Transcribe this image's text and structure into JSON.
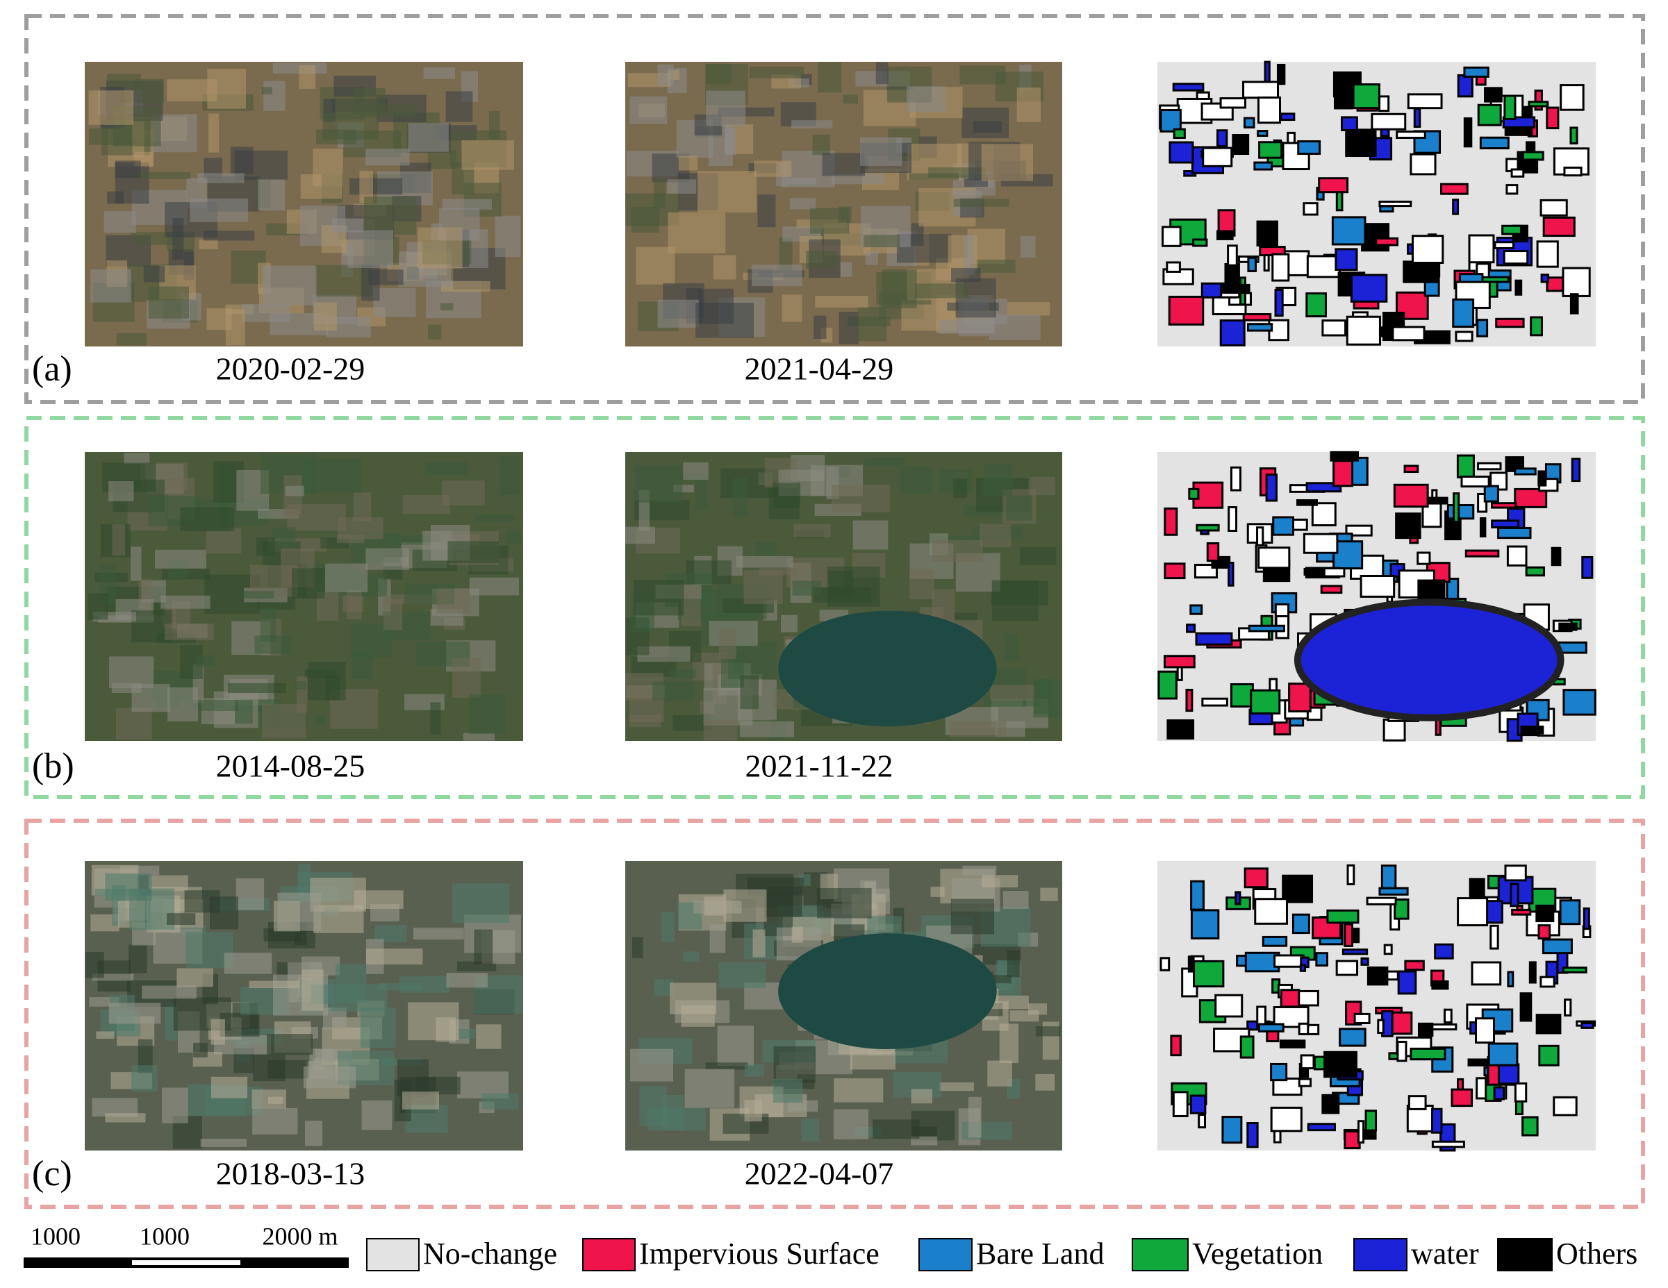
{
  "panels": [
    {
      "label": "(a)",
      "dates": [
        "2020-02-29",
        "2021-04-29"
      ],
      "border_color": "#9e9e9e"
    },
    {
      "label": "(b)",
      "dates": [
        "2014-08-25",
        "2021-11-22"
      ],
      "border_color": "#8fd9a0"
    },
    {
      "label": "(c)",
      "dates": [
        "2018-03-13",
        "2022-04-07"
      ],
      "border_color": "#e8a3a3"
    }
  ],
  "scale_bar": {
    "labels": [
      "1000",
      "1000",
      "2000 m"
    ]
  },
  "legend": [
    {
      "name": "No-change",
      "color": "#e3e3e3"
    },
    {
      "name": "Impervious Surface",
      "color": "#f0144d"
    },
    {
      "name": "Bare Land",
      "color": "#1a80cc"
    },
    {
      "name": "Vegetation",
      "color": "#0fa83a"
    },
    {
      "name": "water",
      "color": "#1c23d6"
    },
    {
      "name": "Others",
      "color": "#000000"
    }
  ]
}
